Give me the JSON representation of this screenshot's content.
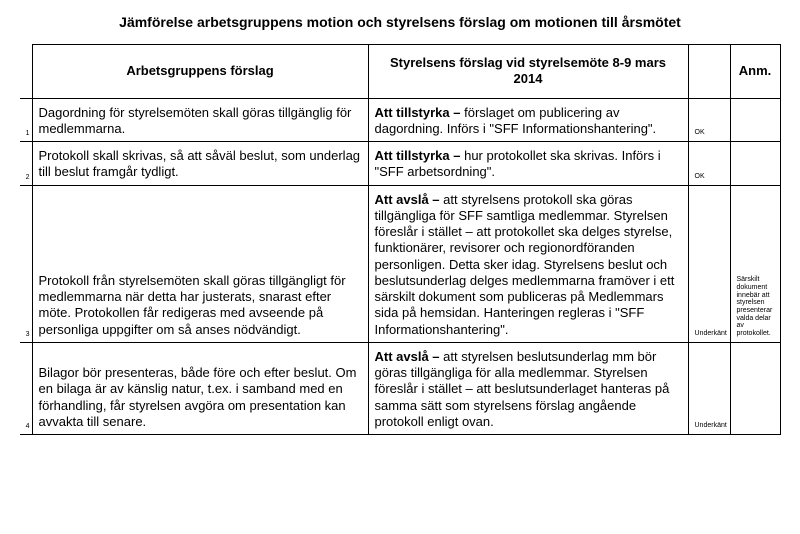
{
  "title": "Jämförelse arbetsgruppens motion och styrelsens förslag om motionen till årsmötet",
  "headers": {
    "col1": "Arbetsgruppens förslag",
    "col2": "Styrelsens förslag vid styrelsemöte 8-9 mars 2014",
    "col3": "",
    "col4": "Anm."
  },
  "rows": [
    {
      "num": "1",
      "c1": "Dagordning för styrelsemöten skall göras tillgänglig för medlemmarna.",
      "c2_bold": "Att tillstyrka –",
      "c2_rest": " förslaget om publicering av dagordning. Införs i \"SFF Informationshantering\".",
      "c3": "OK",
      "c4": ""
    },
    {
      "num": "2",
      "c1": "Protokoll skall skrivas, så att såväl beslut, som underlag till beslut framgår tydligt.",
      "c2_bold": "Att tillstyrka –",
      "c2_rest": " hur protokollet ska skrivas. Införs i \"SFF arbetsordning\".",
      "c3": "OK",
      "c4": ""
    },
    {
      "num": "3",
      "c1": "Protokoll från styrelsemöten skall göras tillgängligt för medlemmarna när detta har justerats, snarast efter möte. Protokollen får redigeras med avseende på personliga uppgifter om så anses nödvändigt.",
      "c2_bold": "Att avslå –",
      "c2_rest": " att styrelsens protokoll ska göras tillgängliga för SFF samtliga medlemmar. Styrelsen föreslår i stället – att protokollet ska delges styrelse, funktionärer, revisorer och regionordföranden personligen. Detta sker idag. Styrelsens beslut och beslutsunderlag delges medlemmarna framöver i ett särskilt dokument som publiceras på Medlemmars sida på hemsidan. Hanteringen regleras i \"SFF Informationshantering\".",
      "c3": "Underkänt",
      "c4": "Särskilt dokument innebär att styrelsen presenterar valda delar av protokollet."
    },
    {
      "num": "4",
      "c1": "Bilagor bör presenteras, både före och efter beslut. Om en bilaga är av känslig natur, t.ex. i samband med en förhandling, får styrelsen avgöra om presentation kan avvakta till senare.",
      "c2_bold": "Att avslå –",
      "c2_rest": " att styrelsen beslutsunderlag mm bör göras tillgängliga för alla medlemmar. Styrelsen föreslår i stället – att beslutsunderlaget hanteras på samma sätt som styrelsens förslag angående protokoll enligt ovan.",
      "c3": "Underkänt",
      "c4": ""
    }
  ]
}
